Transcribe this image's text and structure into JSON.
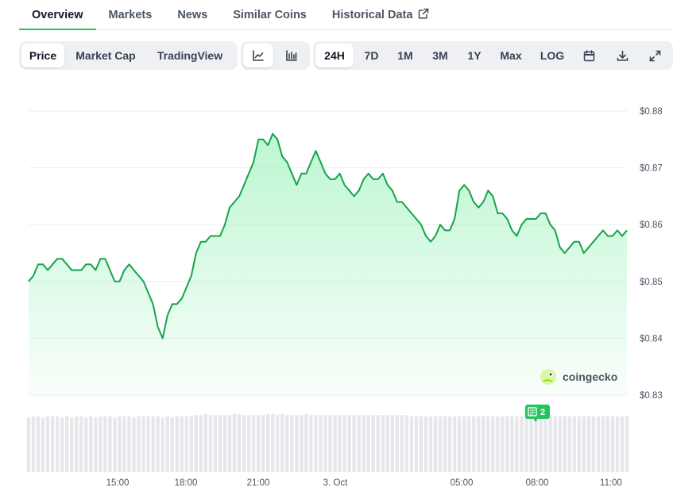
{
  "tabs": [
    {
      "label": "Overview",
      "active": true
    },
    {
      "label": "Markets"
    },
    {
      "label": "News"
    },
    {
      "label": "Similar Coins"
    },
    {
      "label": "Historical Data",
      "icon": "external-link-icon"
    }
  ],
  "metric_options": [
    "Price",
    "Market Cap",
    "TradingView"
  ],
  "selected_metric": "Price",
  "chart_type_options": [
    "line-chart-icon",
    "candlestick-chart-icon"
  ],
  "range_options": [
    "24H",
    "7D",
    "1M",
    "3M",
    "1Y",
    "Max",
    "LOG"
  ],
  "selected_range": "24H",
  "tool_icons": [
    "calendar-icon",
    "download-icon",
    "expand-icon"
  ],
  "watermark": "coingecko",
  "news_badge": "2",
  "colors": {
    "line": "#16a34a",
    "fill_top": "#86efac",
    "accent_tab": "#22c55e",
    "volume": "#e5e7eb"
  },
  "chart_data": {
    "type": "area",
    "x_ticks": [
      "15:00",
      "18:00",
      "21:00",
      "3. Oct",
      "05:00",
      "08:00",
      "11:00"
    ],
    "y_ticks": [
      "$0.88",
      "$0.87",
      "$0.86",
      "$0.85",
      "$0.84",
      "$0.83"
    ],
    "ylim": [
      0.83,
      0.88
    ],
    "grid": true,
    "series": [
      {
        "values": [
          0.85,
          0.851,
          0.853,
          0.853,
          0.852,
          0.853,
          0.854,
          0.854,
          0.853,
          0.852,
          0.852,
          0.852,
          0.853,
          0.853,
          0.852,
          0.854,
          0.854,
          0.852,
          0.85,
          0.85,
          0.852,
          0.853,
          0.852,
          0.851,
          0.85,
          0.848,
          0.846,
          0.842,
          0.84,
          0.844,
          0.846,
          0.846,
          0.847,
          0.849,
          0.851,
          0.855,
          0.857,
          0.857,
          0.858,
          0.858,
          0.858,
          0.86,
          0.863,
          0.864,
          0.865,
          0.867,
          0.869,
          0.871,
          0.875,
          0.875,
          0.874,
          0.876,
          0.875,
          0.872,
          0.871,
          0.869,
          0.867,
          0.869,
          0.869,
          0.871,
          0.873,
          0.871,
          0.869,
          0.868,
          0.868,
          0.869,
          0.867,
          0.866,
          0.865,
          0.866,
          0.868,
          0.869,
          0.868,
          0.868,
          0.869,
          0.867,
          0.866,
          0.864,
          0.864,
          0.863,
          0.862,
          0.861,
          0.86,
          0.858,
          0.857,
          0.858,
          0.86,
          0.859,
          0.859,
          0.861,
          0.866,
          0.867,
          0.866,
          0.864,
          0.863,
          0.864,
          0.866,
          0.865,
          0.862,
          0.862,
          0.861,
          0.859,
          0.858,
          0.86,
          0.861,
          0.861,
          0.861,
          0.862,
          0.862,
          0.86,
          0.859,
          0.856,
          0.855,
          0.856,
          0.857,
          0.857,
          0.855,
          0.856,
          0.857,
          0.858,
          0.859,
          0.858,
          0.858,
          0.859,
          0.858,
          0.859
        ],
        "volume": [
          0.46,
          0.47,
          0.47,
          0.46,
          0.47,
          0.47,
          0.47,
          0.46,
          0.47,
          0.46,
          0.47,
          0.47,
          0.46,
          0.47,
          0.46,
          0.47,
          0.47,
          0.47,
          0.46,
          0.47,
          0.47,
          0.47,
          0.46,
          0.47,
          0.47,
          0.47,
          0.47,
          0.47,
          0.46,
          0.47,
          0.46,
          0.47,
          0.47,
          0.47,
          0.47,
          0.48,
          0.48,
          0.49,
          0.48,
          0.48,
          0.48,
          0.48,
          0.48,
          0.49,
          0.49,
          0.48,
          0.48,
          0.48,
          0.48,
          0.48,
          0.49,
          0.49,
          0.48,
          0.49,
          0.48,
          0.48,
          0.48,
          0.48,
          0.49,
          0.48,
          0.48,
          0.48,
          0.48,
          0.48,
          0.48,
          0.48,
          0.48,
          0.48,
          0.48,
          0.48,
          0.48,
          0.48,
          0.48,
          0.48,
          0.48,
          0.48,
          0.48,
          0.48,
          0.48,
          0.48,
          0.47,
          0.47,
          0.47,
          0.47,
          0.47,
          0.47,
          0.47,
          0.47,
          0.47,
          0.47,
          0.47,
          0.47,
          0.47,
          0.47,
          0.47,
          0.47,
          0.47,
          0.47,
          0.47,
          0.47,
          0.47,
          0.47,
          0.47,
          0.47,
          0.47,
          0.47,
          0.47,
          0.48,
          0.48,
          0.48,
          0.47,
          0.47,
          0.47,
          0.47,
          0.47,
          0.47,
          0.47,
          0.47,
          0.47,
          0.47,
          0.47,
          0.47,
          0.47,
          0.47,
          0.47,
          0.47
        ]
      }
    ]
  }
}
